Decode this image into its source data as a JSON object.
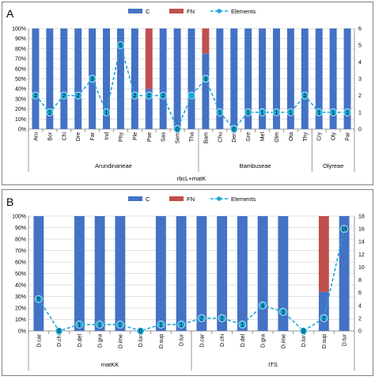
{
  "colors": {
    "C": "#4472c4",
    "FN": "#c0504d",
    "Elements": "#1ba8d8",
    "grid": "#d9d9d9",
    "frame": "#7f7f7f"
  },
  "legend": [
    "C",
    "FN",
    "Elements"
  ],
  "chart_data": [
    {
      "panel": "A",
      "type": "bar",
      "stacked": true,
      "categories": [
        "Aru",
        "Bor",
        "Chi",
        "Dre",
        "Far",
        "Ind",
        "Phy",
        "Ple",
        "Pse",
        "Sas",
        "Sem",
        "Tha",
        "Bam",
        "Chu",
        "Den",
        "Gre",
        "Mel",
        "Olm",
        "Ota",
        "Thy",
        "Cry",
        "Oly",
        "Par"
      ],
      "groups": [
        {
          "label": "Arundinarieae",
          "start": 0,
          "end": 11
        },
        {
          "label": "Bambuseae",
          "start": 12,
          "end": 19
        },
        {
          "label": "Olyreae",
          "start": 20,
          "end": 22
        }
      ],
      "xlabel": "rbcL+matK",
      "series": [
        {
          "name": "C",
          "values": [
            100,
            100,
            100,
            100,
            100,
            100,
            100,
            100,
            40,
            100,
            100,
            100,
            75,
            100,
            100,
            100,
            100,
            100,
            100,
            100,
            100,
            100,
            100
          ]
        },
        {
          "name": "FN",
          "values": [
            0,
            0,
            0,
            0,
            0,
            0,
            0,
            0,
            60,
            0,
            0,
            0,
            25,
            0,
            0,
            0,
            0,
            0,
            0,
            0,
            0,
            0,
            0
          ]
        },
        {
          "name": "Elements",
          "axis": "right",
          "values": [
            2,
            1,
            2,
            2,
            3,
            1,
            5,
            2,
            2,
            2,
            0,
            2,
            3,
            1,
            0,
            1,
            1,
            1,
            1,
            2,
            1,
            1,
            1
          ],
          "labels": [
            "2",
            "1",
            "2",
            "2",
            "3",
            "1",
            "5",
            "2",
            "2",
            "2",
            "0",
            "",
            "3",
            "1",
            "0",
            "1",
            "1",
            "1",
            "1",
            "2",
            "1",
            "1",
            "1"
          ]
        }
      ],
      "ylim": [
        0,
        100
      ],
      "yticks": [
        "0%",
        "10%",
        "20%",
        "30%",
        "40%",
        "50%",
        "60%",
        "70%",
        "80%",
        "90%",
        "100%"
      ],
      "y2lim": [
        0,
        6
      ],
      "y2ticks": [
        "0",
        "1",
        "2",
        "3",
        "4",
        "5",
        "6"
      ]
    },
    {
      "panel": "B",
      "type": "bar",
      "stacked": true,
      "categories": [
        "D.car",
        "D.chi",
        "D.del",
        "D.gra",
        "D.ime",
        "D.lon",
        "D.sup",
        "D.tur",
        "D.car",
        "D.chi",
        "D.del",
        "D.gra",
        "D.ime",
        "D.lon",
        "D.sup",
        "D.tur"
      ],
      "groups": [
        {
          "label": "matKK",
          "start": 0,
          "end": 7
        },
        {
          "label": "ITS",
          "start": 8,
          "end": 15
        }
      ],
      "xlabel": "",
      "series": [
        {
          "name": "C",
          "values": [
            100,
            0,
            100,
            100,
            100,
            0,
            100,
            100,
            100,
            100,
            100,
            100,
            100,
            0,
            34,
            100
          ]
        },
        {
          "name": "FN",
          "values": [
            0,
            0,
            0,
            0,
            0,
            0,
            0,
            0,
            0,
            0,
            0,
            0,
            0,
            0,
            66,
            0
          ]
        },
        {
          "name": "Elements",
          "axis": "right",
          "values": [
            5,
            0,
            1,
            1,
            1,
            0,
            1,
            1,
            2,
            2,
            1,
            4,
            3,
            0,
            2,
            16
          ],
          "labels": [
            "5",
            "0",
            "1",
            "1",
            "1",
            "0",
            "1",
            "1",
            "2",
            "2",
            "1",
            "4",
            "3",
            "0",
            "2",
            "16"
          ]
        }
      ],
      "ylim": [
        0,
        100
      ],
      "yticks": [
        "0%",
        "10%",
        "20%",
        "30%",
        "40%",
        "50%",
        "60%",
        "70%",
        "80%",
        "90%",
        "100%"
      ],
      "y2lim": [
        0,
        18
      ],
      "y2ticks": [
        "0",
        "2",
        "4",
        "6",
        "8",
        "10",
        "12",
        "14",
        "16",
        "18"
      ]
    }
  ]
}
